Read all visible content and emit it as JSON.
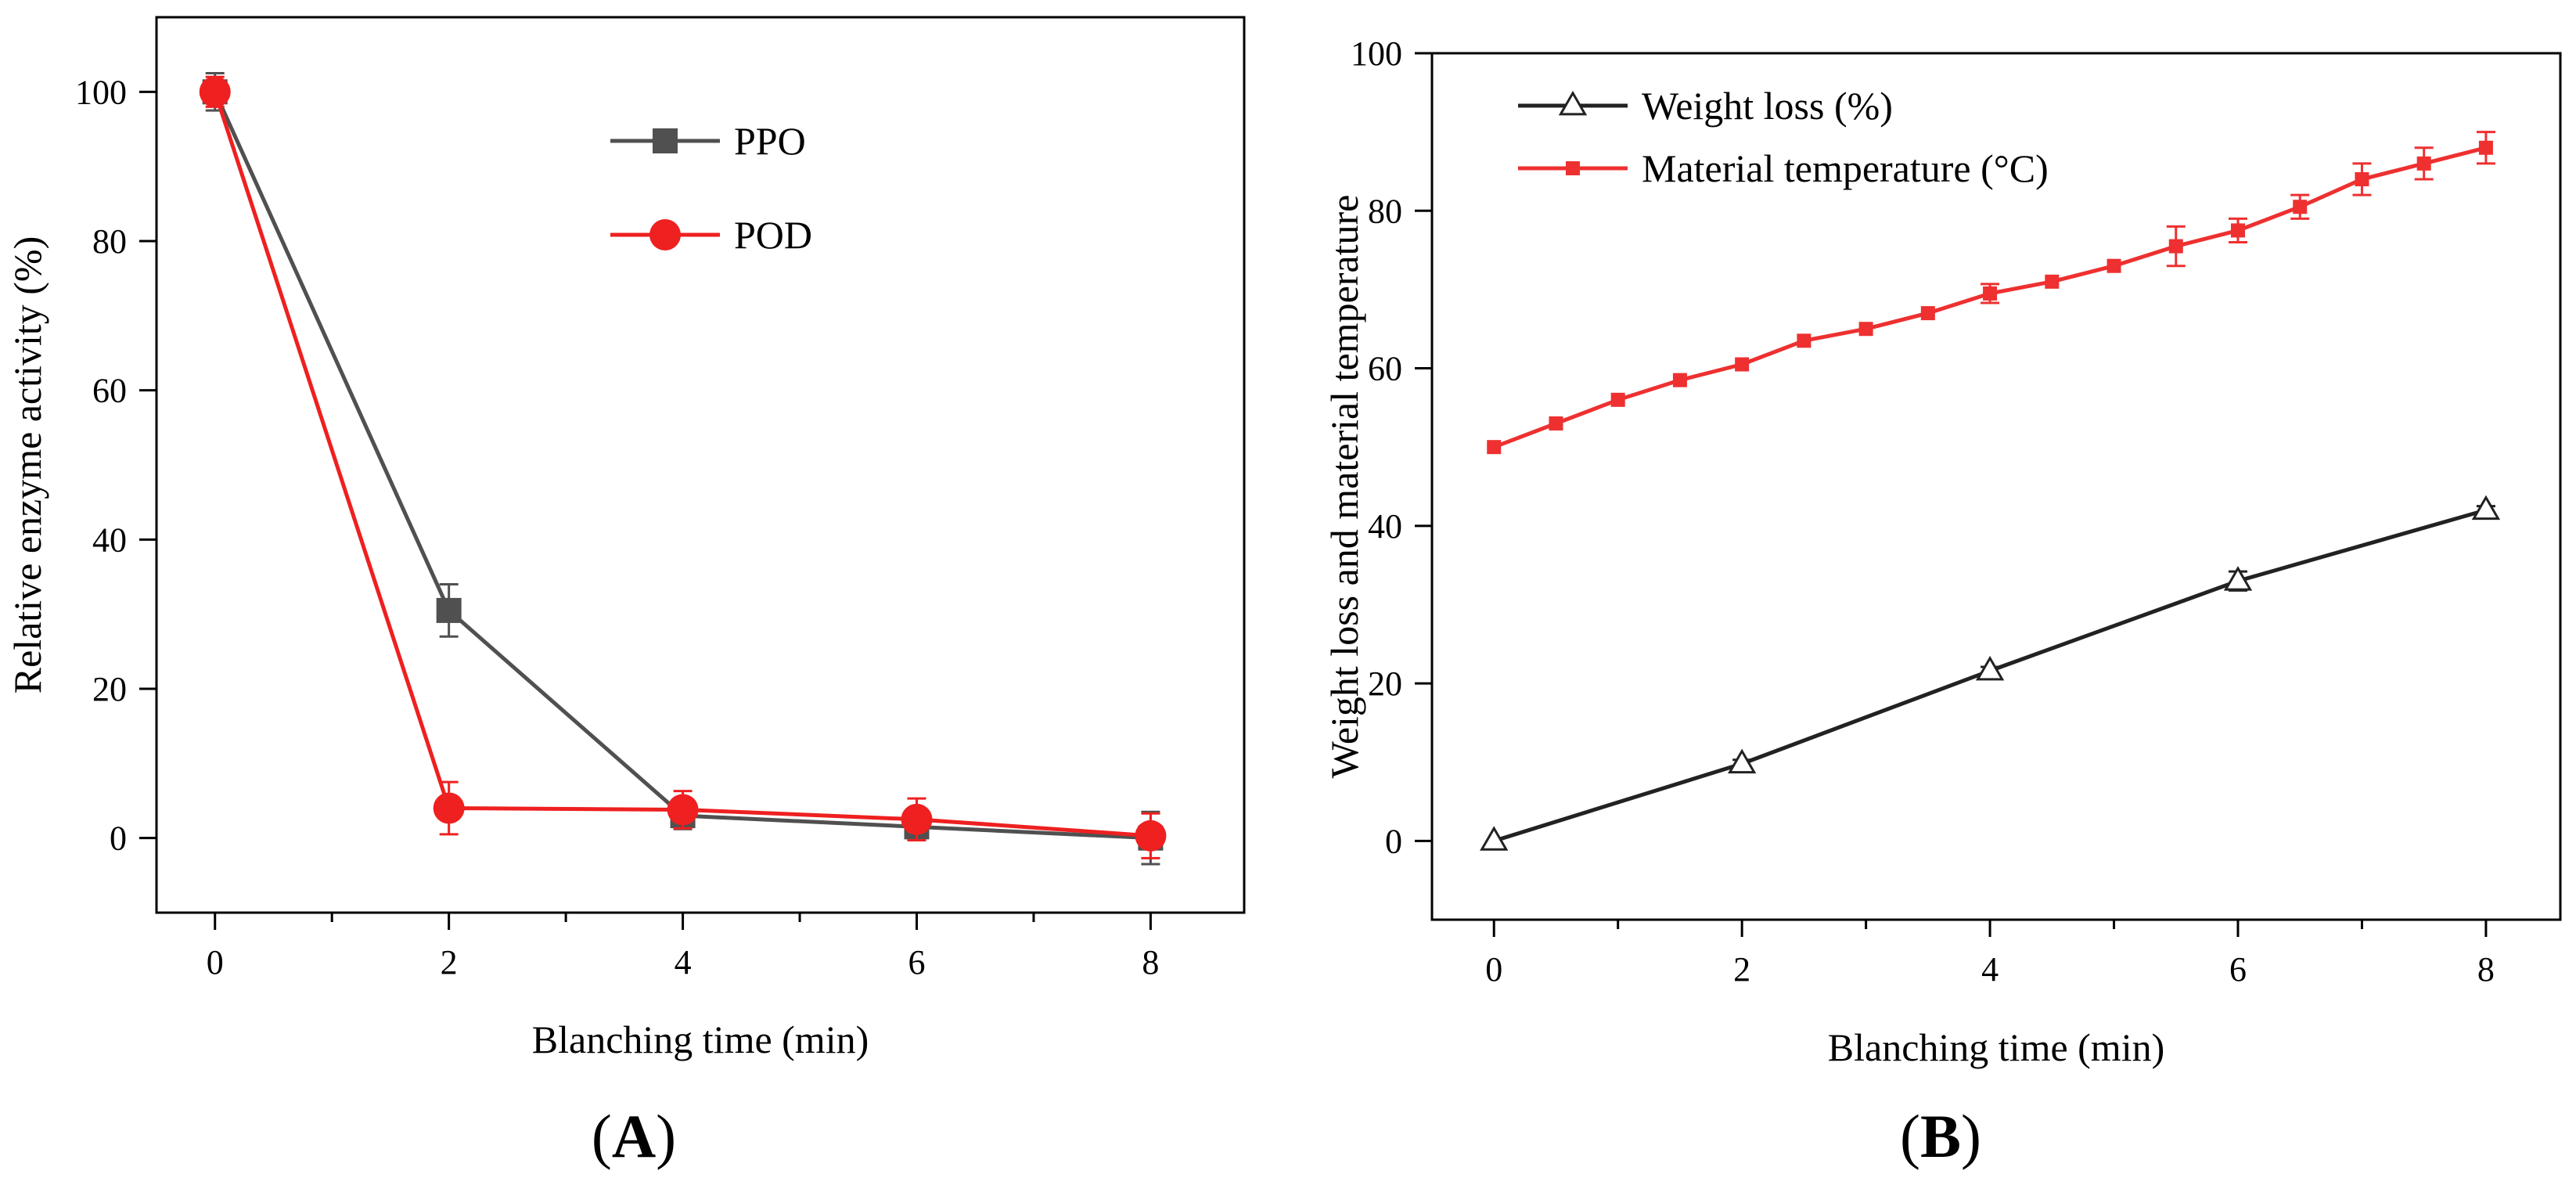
{
  "chart_data": [
    {
      "type": "line",
      "panel_label": "A",
      "xlabel": "Blanching time (min)",
      "ylabel": "Relative enzyme activity (%)",
      "xlim": [
        -0.5,
        8.8
      ],
      "ylim": [
        -10,
        110
      ],
      "xticks": [
        0,
        2,
        4,
        6,
        8
      ],
      "xminor": [
        1,
        3,
        5,
        7
      ],
      "yticks": [
        0,
        20,
        40,
        60,
        80,
        100
      ],
      "legend": "top-center",
      "series": [
        {
          "name": "PPO",
          "color": "#505050",
          "marker": "square",
          "x": [
            0,
            2,
            4,
            6,
            8
          ],
          "y": [
            100,
            30.5,
            3,
            1.5,
            0
          ],
          "err": [
            2.5,
            3.5,
            1.8,
            1.8,
            3.5
          ]
        },
        {
          "name": "POD",
          "color": "#ee2020",
          "marker": "circle",
          "x": [
            0,
            2,
            4,
            6,
            8
          ],
          "y": [
            100,
            4,
            3.8,
            2.5,
            0.3
          ],
          "err": [
            2,
            3.5,
            2.5,
            2.8,
            3
          ]
        }
      ]
    },
    {
      "type": "line",
      "panel_label": "B",
      "xlabel": "Blanching time (min)",
      "ylabel": "Weight loss and  material temperature",
      "xlim": [
        -0.5,
        8.6
      ],
      "ylim": [
        -10,
        100
      ],
      "xticks": [
        0,
        2,
        4,
        6,
        8
      ],
      "xminor": [
        1,
        3,
        5,
        7
      ],
      "yticks": [
        0,
        20,
        40,
        60,
        80,
        100
      ],
      "legend": "top-left",
      "series": [
        {
          "name": "Weight loss (%)",
          "color": "#222222",
          "marker": "triangle-open",
          "x": [
            0,
            2,
            4,
            6,
            8
          ],
          "y": [
            0,
            9.8,
            21.6,
            33,
            42
          ],
          "err": [
            0,
            0.5,
            0.5,
            1.2,
            0.5
          ]
        },
        {
          "name": "Material temperature (°C)",
          "color": "#ee3030",
          "marker": "square",
          "x": [
            0,
            0.5,
            1,
            1.5,
            2,
            2.5,
            3,
            3.5,
            4,
            4.5,
            5,
            5.5,
            6,
            6.5,
            7,
            7.5,
            8
          ],
          "y": [
            50,
            53,
            56,
            58.5,
            60.5,
            63.5,
            65,
            67,
            69.5,
            71,
            73,
            75.5,
            77.5,
            80.5,
            84,
            86,
            88
          ],
          "err": [
            0,
            0,
            0,
            0,
            0,
            0,
            0,
            0,
            1.2,
            0,
            0,
            2.5,
            1.5,
            1.5,
            2,
            2,
            2
          ]
        }
      ]
    }
  ]
}
